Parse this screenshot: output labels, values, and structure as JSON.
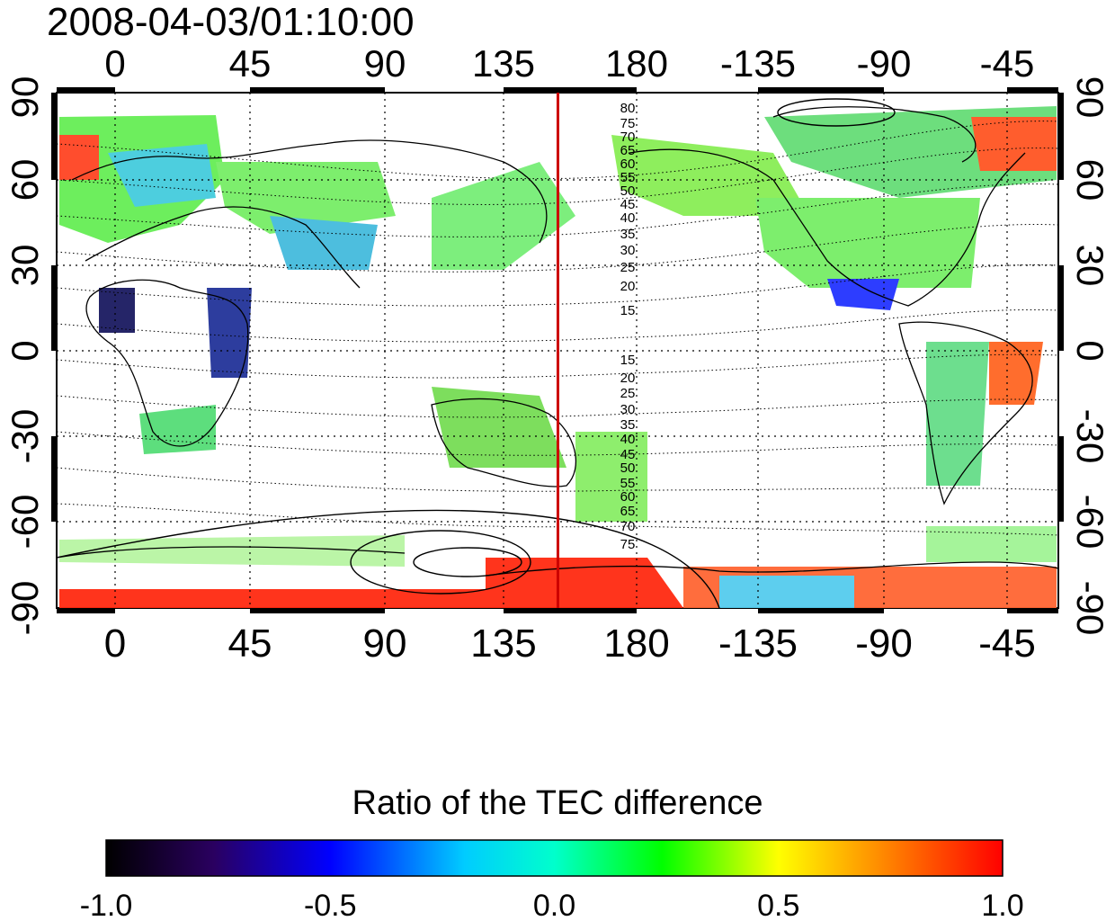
{
  "timestamp": "2008-04-03/01:10:00",
  "map": {
    "x_ticks_top": [
      "0",
      "45",
      "90",
      "135",
      "180",
      "-135",
      "-90",
      "-45"
    ],
    "x_ticks_bottom": [
      "0",
      "45",
      "90",
      "135",
      "180",
      "-135",
      "-90",
      "-45"
    ],
    "y_ticks_left": [
      "90",
      "60",
      "30",
      "0",
      "-30",
      "-60",
      "-90"
    ],
    "y_ticks_right": [
      "90",
      "60",
      "30",
      "0",
      "-30",
      "-60",
      "-90"
    ],
    "lon_range": [
      -20,
      340
    ],
    "lat_range": [
      -90,
      90
    ],
    "grid": true,
    "meridian_marker_lon": 165,
    "meridian_marker_color": "#cc0000",
    "contour_labels_north": [
      "80",
      "75",
      "70",
      "65",
      "60",
      "55",
      "50",
      "45",
      "40",
      "35",
      "30",
      "25",
      "20",
      "15"
    ],
    "contour_labels_south": [
      "15",
      "20",
      "25",
      "30",
      "35",
      "40",
      "45",
      "50",
      "55",
      "60",
      "65",
      "70",
      "75"
    ]
  },
  "colorbar": {
    "title": "Ratio of the TEC difference",
    "tick_labels": [
      "-1.0",
      "-0.5",
      "0.0",
      "0.5",
      "1.0"
    ],
    "range": [
      -1.0,
      1.0
    ],
    "colors": [
      "#000000",
      "#2a0060",
      "#0000ff",
      "#00ffff",
      "#00ff00",
      "#ffff00",
      "#ff0000"
    ]
  }
}
